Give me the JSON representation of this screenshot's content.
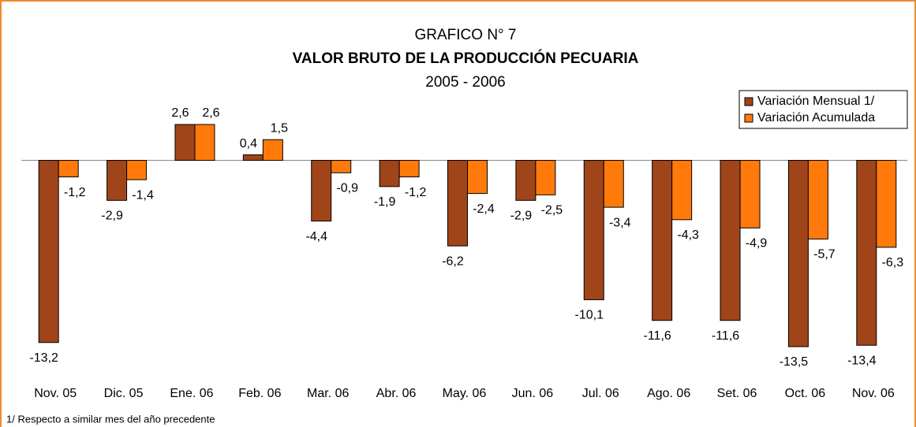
{
  "chart_data": {
    "type": "bar",
    "title": "GRAFICO N° 7",
    "subtitle": "VALOR BRUTO DE LA PRODUCCIÓN PECUARIA",
    "period": "2005 - 2006",
    "footnote": "1/ Respecto a similar mes del año precedente",
    "categories": [
      "Nov. 05",
      "Dic. 05",
      "Ene. 06",
      "Feb. 06",
      "Mar. 06",
      "Abr. 06",
      "May. 06",
      "Jun. 06",
      "Jul. 06",
      "Ago. 06",
      "Set. 06",
      "Oct. 06",
      "Nov. 06"
    ],
    "series": [
      {
        "name": "Variación Mensual 1/",
        "color": "#a0441a",
        "values": [
          -13.2,
          -2.9,
          2.6,
          0.4,
          -4.4,
          -1.9,
          -6.2,
          -2.9,
          -10.1,
          -11.6,
          -11.6,
          -13.5,
          -13.4
        ],
        "value_labels": [
          "-13,2",
          "-2,9",
          "2,6",
          "0,4",
          "-4,4",
          "-1,9",
          "-6,2",
          "-2,9",
          "-10,1",
          "-11,6",
          "-11,6",
          "-13,5",
          "-13,4"
        ]
      },
      {
        "name": "Variación Acumulada",
        "color": "#ff7a0a",
        "values": [
          -1.2,
          -1.4,
          2.6,
          1.5,
          -0.9,
          -1.2,
          -2.4,
          -2.5,
          -3.4,
          -4.3,
          -4.9,
          -5.7,
          -6.3
        ],
        "value_labels": [
          "-1,2",
          "-1,4",
          "2,6",
          "1,5",
          "-0,9",
          "-1,2",
          "-2,4",
          "-2,5",
          "-3,4",
          "-4,3",
          "-4,9",
          "-5,7",
          "-6,3"
        ]
      }
    ],
    "legend": "top-right"
  }
}
